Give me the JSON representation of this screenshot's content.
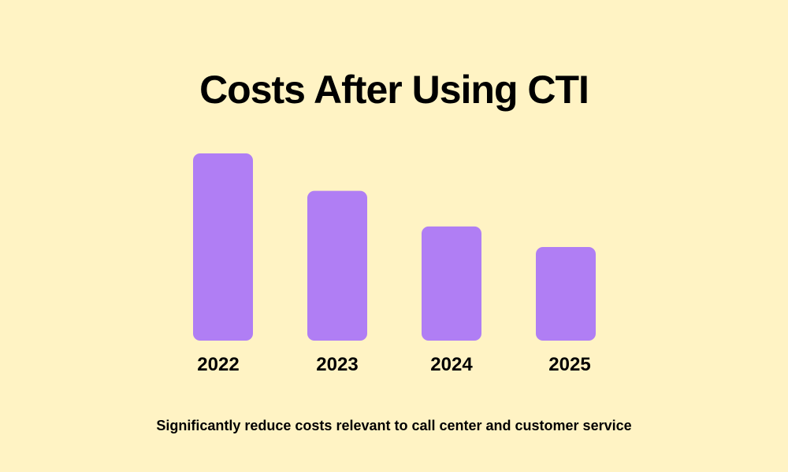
{
  "header": {
    "title": "Costs After Using CTI"
  },
  "footer": {
    "caption": "Significantly reduce costs relevant to call center and customer service"
  },
  "colors": {
    "background": "#FFF3C4",
    "bar": "#B07EF4",
    "text": "#000000"
  },
  "chart_data": {
    "type": "bar",
    "title": "Costs After Using CTI",
    "categories": [
      "2022",
      "2023",
      "2024",
      "2025"
    ],
    "values": [
      100,
      80,
      61,
      50
    ],
    "xlabel": "",
    "ylabel": "",
    "ylim": [
      0,
      100
    ],
    "grid": false,
    "legend": "none",
    "y_axis_visible": false
  }
}
